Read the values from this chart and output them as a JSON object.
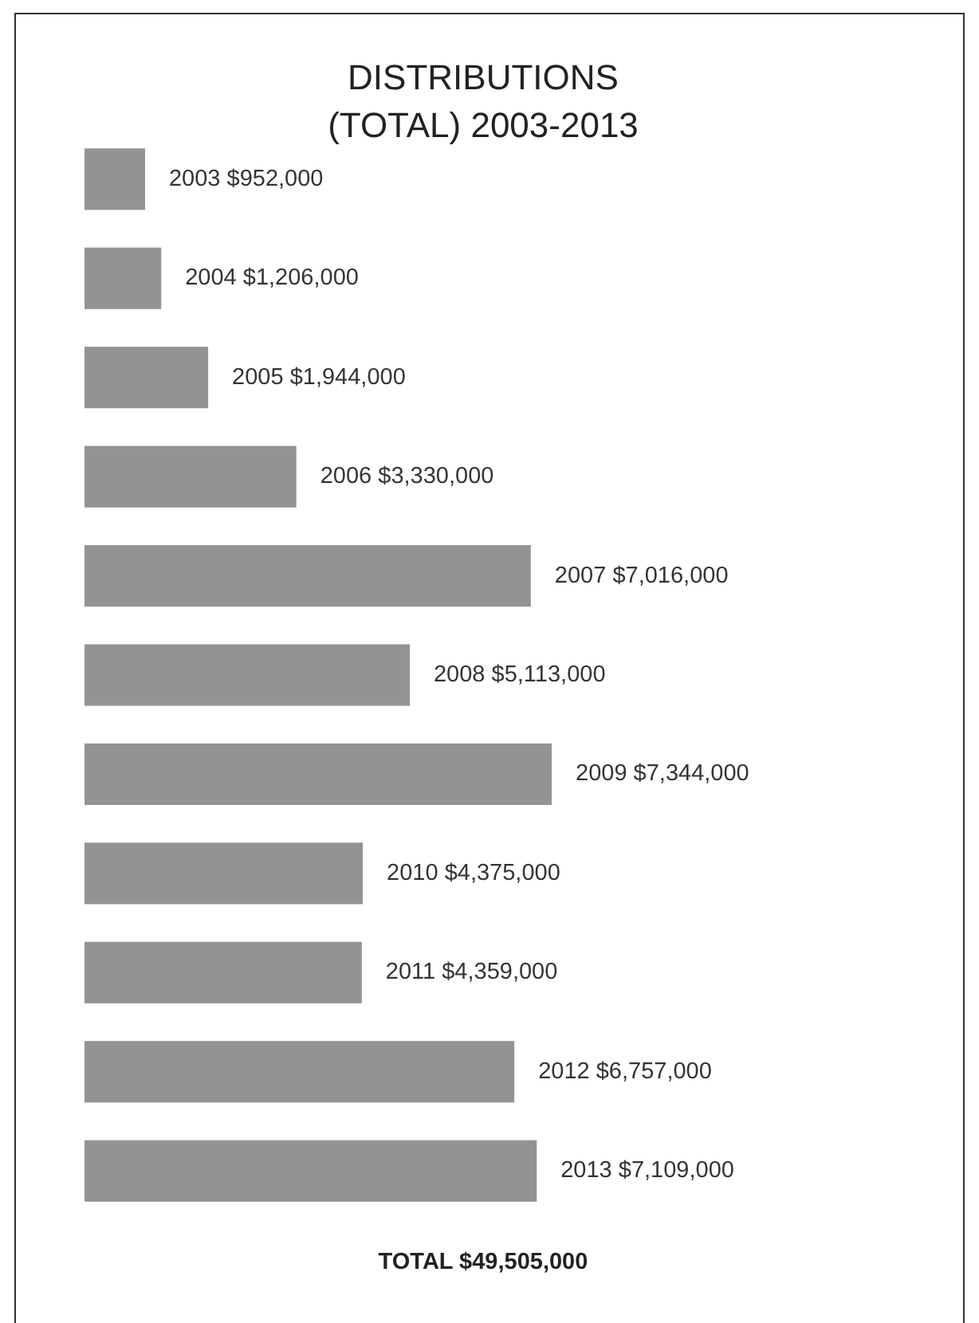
{
  "chart_data": {
    "type": "bar",
    "orientation": "horizontal",
    "title": "DISTRIBUTIONS\n(TOTAL) 2003-2013",
    "categories": [
      null,
      null,
      null,
      null,
      null,
      null,
      null,
      null,
      null,
      null,
      null
    ],
    "values": [
      952000,
      1206000,
      1944000,
      3330000,
      7016000,
      5113000,
      7344000,
      4375000,
      4359000,
      6757000,
      7109000
    ],
    "value_labels": [
      "2003 $952,000",
      "2004 $1,206,000",
      "2005 $1,944,000",
      "2006 $3,330,000",
      "2007 $7,016,000",
      "2008 $5,113,000",
      "2009 $7,344,000",
      "2010 $4,375,000",
      "2011 $4,359,000",
      "2012 $6,757,000",
      "2013 $7,109,000"
    ],
    "color": "#939393",
    "annotations": [
      "TOTAL $49,505,000"
    ]
  }
}
